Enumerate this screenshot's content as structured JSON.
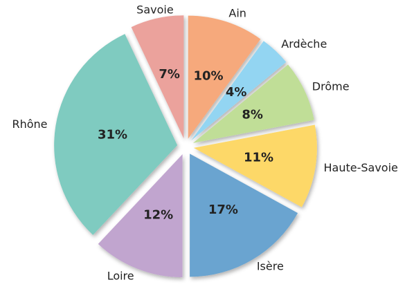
{
  "chart_data": {
    "type": "pie",
    "categories": [
      "Ain",
      "Ardèche",
      "Drôme",
      "Haute-Savoie",
      "Isère",
      "Loire",
      "Rhône",
      "Savoie"
    ],
    "values": [
      10,
      4,
      8,
      11,
      17,
      12,
      31,
      7
    ],
    "value_labels": [
      "10%",
      "4%",
      "8%",
      "11%",
      "17%",
      "12%",
      "31%",
      "7%"
    ],
    "colors": [
      "#f6a97c",
      "#93d5f2",
      "#c0de97",
      "#fdd867",
      "#6ba4d0",
      "#c1a5cf",
      "#7fcbc0",
      "#eba29c"
    ]
  }
}
